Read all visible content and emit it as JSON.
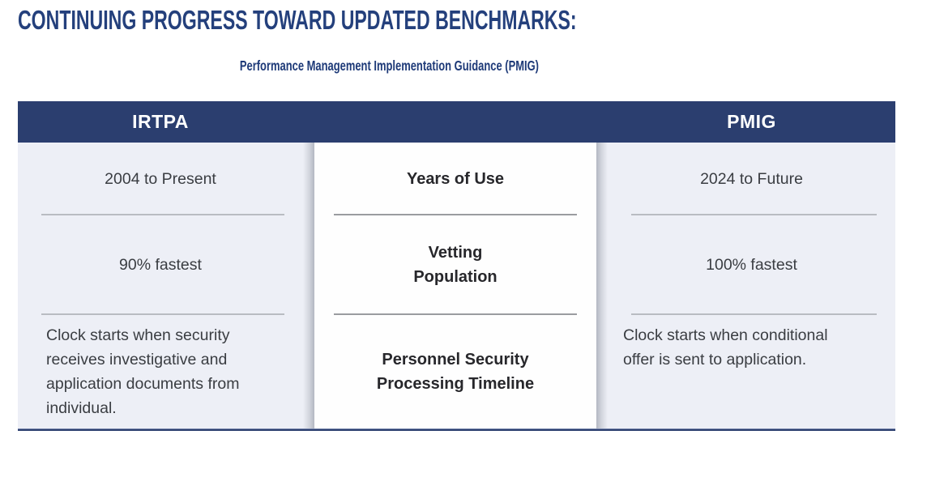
{
  "header": {
    "title": "CONTINUING PROGRESS TOWARD UPDATED BENCHMARKS:",
    "subtitle": "Performance Management Implementation Guidance (PMIG)"
  },
  "table": {
    "columns": {
      "left": "IRTPA",
      "right": "PMIG"
    },
    "rows": [
      {
        "irtpa": "2004 to Present",
        "category": "Years of Use",
        "pmig": "2024 to Future"
      },
      {
        "irtpa": "90% fastest",
        "category": "Vetting\nPopulation",
        "pmig": "100% fastest"
      },
      {
        "irtpa": "Clock starts when security\nreceives investigative and\napplication documents from\nindividual.",
        "category": "Personnel Security\nProcessing Timeline",
        "pmig": "Clock starts when conditional\noffer is sent to application."
      }
    ]
  },
  "colors": {
    "navy": "#2b3e6f",
    "title_navy": "#24407c",
    "subtitle_navy": "#1e3a78",
    "light_bg": "#edeff6",
    "body_text": "#3a3d42",
    "category_text": "#27272b",
    "side_divider": "#b9bcc2",
    "center_divider": "#9a9ca0"
  }
}
